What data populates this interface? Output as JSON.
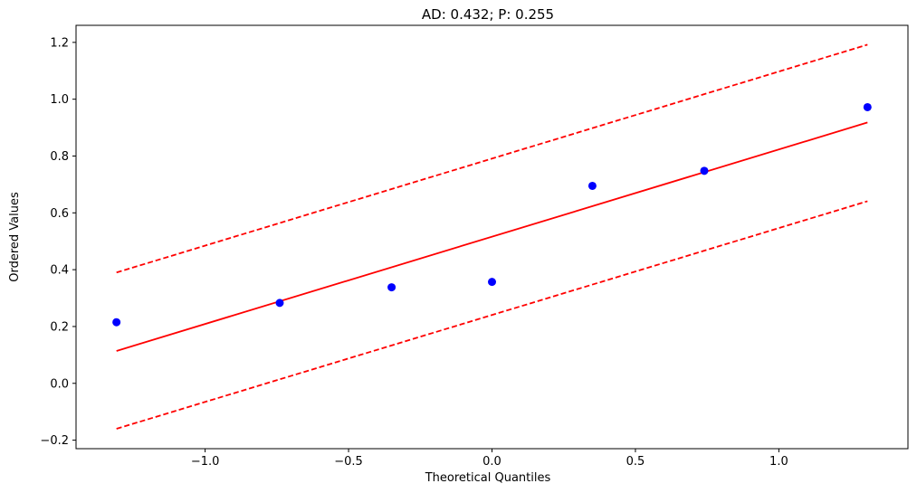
{
  "chart_data": {
    "type": "scatter",
    "title": "AD: 0.432; P: 0.255",
    "xlabel": "Theoretical Quantiles",
    "ylabel": "Ordered Values",
    "xlim": [
      -1.45,
      1.45
    ],
    "ylim": [
      -0.23,
      1.26
    ],
    "xticks": [
      -1.0,
      -0.5,
      0.0,
      0.5,
      1.0
    ],
    "xtick_labels": [
      "−1.0",
      "−0.5",
      "0.0",
      "0.5",
      "1.0"
    ],
    "yticks": [
      -0.2,
      0.0,
      0.2,
      0.4,
      0.6,
      0.8,
      1.0,
      1.2
    ],
    "ytick_labels": [
      "−0.2",
      "0.0",
      "0.2",
      "0.4",
      "0.6",
      "0.8",
      "1.0",
      "1.2"
    ],
    "grid": false,
    "points": {
      "x": [
        -1.309,
        -0.74,
        -0.35,
        0.0,
        0.35,
        0.74,
        1.309
      ],
      "y": [
        0.215,
        0.283,
        0.338,
        0.357,
        0.695,
        0.748,
        0.972
      ],
      "color": "#0000ff"
    },
    "fit_line": {
      "x": [
        -1.309,
        1.309
      ],
      "y": [
        0.114,
        0.918
      ],
      "color": "#ff0000",
      "style": "solid"
    },
    "upper_band": {
      "x": [
        -1.309,
        1.309
      ],
      "y": [
        0.39,
        1.192
      ],
      "color": "#ff0000",
      "style": "dashed"
    },
    "lower_band": {
      "x": [
        -1.309,
        1.309
      ],
      "y": [
        -0.16,
        0.641
      ],
      "color": "#ff0000",
      "style": "dashed"
    }
  }
}
